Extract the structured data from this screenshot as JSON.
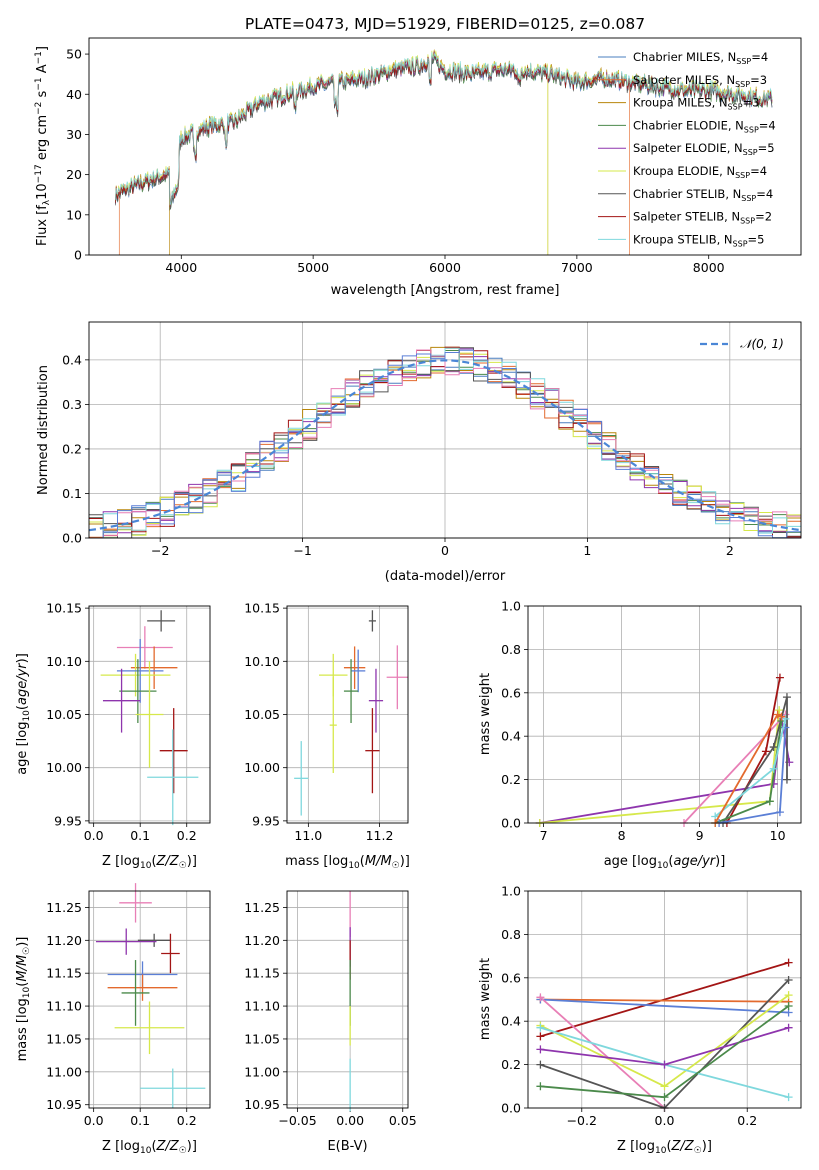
{
  "figure_title": "PLATE=0473, MJD=51929, FIBERID=0125, z=0.087",
  "colors": {
    "Chabrier MILES": "#4a7fbf",
    "Salpeter MILES": "#e36a2e",
    "Kroupa MILES": "#b8860b",
    "Chabrier ELODIE": "#4b8a4b",
    "Salpeter ELODIE": "#8e35ad",
    "Kroupa ELODIE": "#d6e84b",
    "Chabrier STELIB": "#555555",
    "Salpeter STELIB": "#a31515",
    "Kroupa STELIB": "#7fd8dd",
    "normal": "#4a86d6",
    "pink": "#e87fb6",
    "blue2": "#5b7fd6"
  },
  "chart_data": [
    {
      "type": "line",
      "panel": "spectrum",
      "xlabel": "wavelength [Angstrom, rest frame]",
      "ylabel": "Flux [f_λ 10^-17 erg cm^-2 s^-1 A^-1]",
      "xlim": [
        3300,
        8700
      ],
      "ylim": [
        0,
        54
      ],
      "xticks": [
        4000,
        5000,
        6000,
        7000,
        8000
      ],
      "yticks": [
        0,
        10,
        20,
        30,
        40,
        50
      ],
      "legend_position": "top-right",
      "legend": [
        {
          "name": "Chabrier MILES",
          "nssp": "4"
        },
        {
          "name": "Salpeter MILES",
          "nssp": "3"
        },
        {
          "name": "Kroupa MILES",
          "nssp": "3"
        },
        {
          "name": "Chabrier ELODIE",
          "nssp": "4"
        },
        {
          "name": "Salpeter ELODIE",
          "nssp": "5"
        },
        {
          "name": "Kroupa ELODIE",
          "nssp": "4"
        },
        {
          "name": "Chabrier STELIB",
          "nssp": "4"
        },
        {
          "name": "Salpeter STELIB",
          "nssp": "2"
        },
        {
          "name": "Kroupa STELIB",
          "nssp": "5"
        }
      ],
      "continuum": {
        "x": [
          3500,
          3700,
          3900,
          4000,
          4200,
          4400,
          4600,
          4800,
          5000,
          5200,
          5400,
          5600,
          5800,
          5900,
          6000,
          6200,
          6400,
          6600,
          6800,
          7000,
          7200,
          7400,
          7600,
          7800,
          8000,
          8200,
          8400
        ],
        "y": [
          15,
          18,
          20,
          29,
          32,
          33,
          38,
          40,
          42,
          43,
          44,
          46,
          47,
          49,
          46,
          45,
          46,
          46,
          45,
          43,
          44,
          43,
          42,
          41,
          41,
          40,
          39
        ]
      },
      "edge_drops": [
        3530,
        3910,
        6780,
        7400
      ]
    },
    {
      "type": "bar",
      "panel": "residual-histogram",
      "xlabel": "(data-model)/error",
      "ylabel": "Normed distribution",
      "xlim": [
        -2.5,
        2.5
      ],
      "ylim": [
        0,
        0.485
      ],
      "xticks": [
        -2,
        -1,
        0,
        1,
        2
      ],
      "yticks": [
        0.0,
        0.1,
        0.2,
        0.3,
        0.4
      ],
      "legend_position": "top-right",
      "legend_label": "𝒩(0, 1)",
      "bins": 50,
      "bin_width": 0.1
    },
    {
      "type": "scatter",
      "panel": "age-vs-Z",
      "xlabel": "Z [log10(Z/Z☉)]",
      "ylabel": "age [log10(age/yr)]",
      "xlim": [
        -0.01,
        0.25
      ],
      "ylim": [
        9.948,
        10.152
      ],
      "xticks": [
        0.0,
        0.1,
        0.2
      ],
      "yticks": [
        9.95,
        10.0,
        10.05,
        10.1,
        10.15
      ],
      "points": [
        {
          "series": "Chabrier STELIB",
          "x": 0.145,
          "y": 10.138,
          "xerr": 0.03,
          "yerr": 0.01
        },
        {
          "series": "pink",
          "x": 0.11,
          "y": 10.113,
          "xerr": 0.06,
          "yerr": 0.02
        },
        {
          "series": "Salpeter MILES",
          "x": 0.13,
          "y": 10.094,
          "xerr": 0.05,
          "yerr": 0.02
        },
        {
          "series": "Kroupa ELODIE",
          "x": 0.09,
          "y": 10.087,
          "xerr": 0.075,
          "yerr": 0.02
        },
        {
          "series": "blue2",
          "x": 0.1,
          "y": 10.091,
          "xerr": 0.05,
          "yerr": 0.03
        },
        {
          "series": "Chabrier ELODIE",
          "x": 0.095,
          "y": 10.072,
          "xerr": 0.04,
          "yerr": 0.03
        },
        {
          "series": "Salpeter ELODIE",
          "x": 0.06,
          "y": 10.063,
          "xerr": 0.04,
          "yerr": 0.03
        },
        {
          "series": "Kroupa ELODIE",
          "x": 0.12,
          "y": 10.05,
          "xerr": 0.03,
          "yerr": 0.05
        },
        {
          "series": "Salpeter STELIB",
          "x": 0.172,
          "y": 10.016,
          "xerr": 0.03,
          "yerr": 0.04
        },
        {
          "series": "Kroupa STELIB",
          "x": 0.17,
          "y": 9.991,
          "xerr": 0.055,
          "yerr": 0.045
        }
      ]
    },
    {
      "type": "scatter",
      "panel": "age-vs-mass",
      "xlabel": "mass [log10(M/M☉)]",
      "ylabel": "",
      "xlim": [
        10.94,
        11.28
      ],
      "ylim": [
        9.948,
        10.152
      ],
      "xticks": [
        11.0,
        11.2
      ],
      "yticks": [
        9.95,
        10.0,
        10.05,
        10.1,
        10.15
      ],
      "points": [
        {
          "series": "Chabrier STELIB",
          "x": 11.18,
          "y": 10.138,
          "xerr": 0.01,
          "yerr": 0.01
        },
        {
          "series": "pink",
          "x": 11.25,
          "y": 10.085,
          "xerr": 0.03,
          "yerr": 0.03
        },
        {
          "series": "Salpeter MILES",
          "x": 11.13,
          "y": 10.094,
          "xerr": 0.03,
          "yerr": 0.02
        },
        {
          "series": "blue2",
          "x": 11.14,
          "y": 10.091,
          "xerr": 0.02,
          "yerr": 0.02
        },
        {
          "series": "Kroupa ELODIE",
          "x": 11.07,
          "y": 10.087,
          "xerr": 0.04,
          "yerr": 0.02
        },
        {
          "series": "Chabrier ELODIE",
          "x": 11.12,
          "y": 10.072,
          "xerr": 0.02,
          "yerr": 0.03
        },
        {
          "series": "Salpeter ELODIE",
          "x": 11.19,
          "y": 10.063,
          "xerr": 0.02,
          "yerr": 0.03
        },
        {
          "series": "Kroupa ELODIE",
          "x": 11.07,
          "y": 10.04,
          "xerr": 0.01,
          "yerr": 0.045
        },
        {
          "series": "Salpeter STELIB",
          "x": 11.18,
          "y": 10.016,
          "xerr": 0.02,
          "yerr": 0.04
        },
        {
          "series": "Kroupa STELIB",
          "x": 10.98,
          "y": 9.99,
          "xerr": 0.02,
          "yerr": 0.035
        }
      ]
    },
    {
      "type": "line",
      "panel": "mass-weight-vs-age",
      "xlabel": "age [log10(age/yr)]",
      "ylabel": "mass weight",
      "xlim": [
        6.8,
        10.3
      ],
      "ylim": [
        0,
        1.0
      ],
      "xticks": [
        7,
        8,
        9,
        10
      ],
      "yticks": [
        0.0,
        0.2,
        0.4,
        0.6,
        0.8,
        1.0
      ],
      "series": [
        {
          "name": "Salpeter ELODIE",
          "x": [
            6.95,
            9.95,
            10.05,
            10.15
          ],
          "y": [
            0.0,
            0.18,
            0.48,
            0.28
          ]
        },
        {
          "name": "Kroupa ELODIE",
          "x": [
            6.95,
            9.9,
            10.02
          ],
          "y": [
            0.0,
            0.1,
            0.52
          ]
        },
        {
          "name": "pink",
          "x": [
            8.8,
            10.1
          ],
          "y": [
            0.0,
            0.5
          ]
        },
        {
          "name": "Salpeter STELIB",
          "x": [
            9.35,
            9.85,
            10.03
          ],
          "y": [
            0.0,
            0.33,
            0.67
          ]
        },
        {
          "name": "Chabrier STELIB",
          "x": [
            9.3,
            9.95,
            10.12,
            10.12
          ],
          "y": [
            0.0,
            0.35,
            0.58,
            0.2
          ]
        },
        {
          "name": "Chabrier ELODIE",
          "x": [
            9.2,
            9.9,
            10.05
          ],
          "y": [
            0.0,
            0.1,
            0.47
          ]
        },
        {
          "name": "blue2",
          "x": [
            9.25,
            10.03,
            10.1
          ],
          "y": [
            0.0,
            0.05,
            0.44
          ]
        },
        {
          "name": "Kroupa STELIB",
          "x": [
            9.2,
            9.95,
            10.1
          ],
          "y": [
            0.03,
            0.25,
            0.48
          ]
        },
        {
          "name": "Salpeter MILES",
          "x": [
            9.2,
            10.0,
            10.05
          ],
          "y": [
            0.0,
            0.5,
            0.49
          ]
        }
      ]
    },
    {
      "type": "scatter",
      "panel": "mass-vs-Z",
      "xlabel": "Z [log10(Z/Z☉)]",
      "ylabel": "mass [log10(M/M☉)]",
      "xlim": [
        -0.01,
        0.25
      ],
      "ylim": [
        10.945,
        11.275
      ],
      "xticks": [
        0.0,
        0.1,
        0.2
      ],
      "yticks": [
        10.95,
        11.0,
        11.05,
        11.1,
        11.15,
        11.2,
        11.25
      ],
      "points": [
        {
          "series": "pink",
          "x": 0.09,
          "y": 11.257,
          "xerr": 0.035,
          "yerr": 0.03
        },
        {
          "series": "Chabrier STELIB",
          "x": 0.13,
          "y": 11.2,
          "xerr": 0.035,
          "yerr": 0.01
        },
        {
          "series": "Salpeter ELODIE",
          "x": 0.07,
          "y": 11.198,
          "xerr": 0.065,
          "yerr": 0.02
        },
        {
          "series": "Salpeter STELIB",
          "x": 0.165,
          "y": 11.18,
          "xerr": 0.02,
          "yerr": 0.03
        },
        {
          "series": "blue2",
          "x": 0.105,
          "y": 11.148,
          "xerr": 0.075,
          "yerr": 0.02
        },
        {
          "series": "Salpeter MILES",
          "x": 0.105,
          "y": 11.128,
          "xerr": 0.075,
          "yerr": 0.02
        },
        {
          "series": "Chabrier ELODIE",
          "x": 0.09,
          "y": 11.12,
          "xerr": 0.03,
          "yerr": 0.05
        },
        {
          "series": "Kroupa ELODIE",
          "x": 0.12,
          "y": 11.067,
          "xerr": 0.075,
          "yerr": 0.04
        },
        {
          "series": "Kroupa STELIB",
          "x": 0.17,
          "y": 10.975,
          "xerr": 0.07,
          "yerr": 0.03
        }
      ]
    },
    {
      "type": "scatter",
      "panel": "mass-vs-EBV",
      "xlabel": "E(B-V)",
      "ylabel": "",
      "xlim": [
        -0.06,
        0.055
      ],
      "ylim": [
        10.945,
        11.275
      ],
      "xticks": [
        -0.05,
        0.0,
        0.05
      ],
      "yticks": [
        10.95,
        11.0,
        11.05,
        11.1,
        11.15,
        11.2,
        11.25
      ],
      "points": [
        {
          "series": "pink",
          "x": 0.0,
          "y": 11.24,
          "xerr": 0.0,
          "yerr": 0.035
        },
        {
          "series": "Salpeter ELODIE",
          "x": 0.0,
          "y": 11.19,
          "xerr": 0.0,
          "yerr": 0.03
        },
        {
          "series": "Salpeter STELIB",
          "x": 0.0,
          "y": 11.17,
          "xerr": 0.0,
          "yerr": 0.03
        },
        {
          "series": "Chabrier ELODIE",
          "x": 0.0,
          "y": 11.12,
          "xerr": 0.0,
          "yerr": 0.05
        },
        {
          "series": "Kroupa ELODIE",
          "x": 0.0,
          "y": 11.07,
          "xerr": 0.0,
          "yerr": 0.03
        },
        {
          "series": "Kroupa STELIB",
          "x": 0.0,
          "y": 10.98,
          "xerr": 0.0,
          "yerr": 0.04
        }
      ]
    },
    {
      "type": "line",
      "panel": "mass-weight-vs-Z",
      "xlabel": "Z [log10(Z/Z☉)]",
      "ylabel": "mass weight",
      "xlim": [
        -0.33,
        0.33
      ],
      "ylim": [
        0,
        1.0
      ],
      "xticks": [
        -0.2,
        0.0,
        0.2
      ],
      "yticks": [
        0.0,
        0.2,
        0.4,
        0.6,
        0.8,
        1.0
      ],
      "series": [
        {
          "name": "Salpeter STELIB",
          "x": [
            -0.3,
            0.3
          ],
          "y": [
            0.33,
            0.67
          ]
        },
        {
          "name": "Salpeter MILES",
          "x": [
            -0.3,
            0.3
          ],
          "y": [
            0.5,
            0.49
          ]
        },
        {
          "name": "blue2",
          "x": [
            -0.3,
            0.3
          ],
          "y": [
            0.5,
            0.44
          ]
        },
        {
          "name": "pink",
          "x": [
            -0.3,
            0.0
          ],
          "y": [
            0.51,
            0.0
          ]
        },
        {
          "name": "Chabrier STELIB",
          "x": [
            -0.3,
            0.0,
            0.3
          ],
          "y": [
            0.2,
            0.0,
            0.59
          ]
        },
        {
          "name": "Kroupa ELODIE",
          "x": [
            -0.3,
            0.0,
            0.3
          ],
          "y": [
            0.38,
            0.1,
            0.52
          ]
        },
        {
          "name": "Kroupa STELIB",
          "x": [
            -0.3,
            0.0,
            0.3
          ],
          "y": [
            0.37,
            0.2,
            0.05
          ]
        },
        {
          "name": "Salpeter ELODIE",
          "x": [
            -0.3,
            0.0,
            0.3
          ],
          "y": [
            0.27,
            0.2,
            0.37
          ]
        },
        {
          "name": "Chabrier ELODIE",
          "x": [
            -0.3,
            0.0,
            0.3
          ],
          "y": [
            0.1,
            0.05,
            0.47
          ]
        }
      ]
    }
  ]
}
